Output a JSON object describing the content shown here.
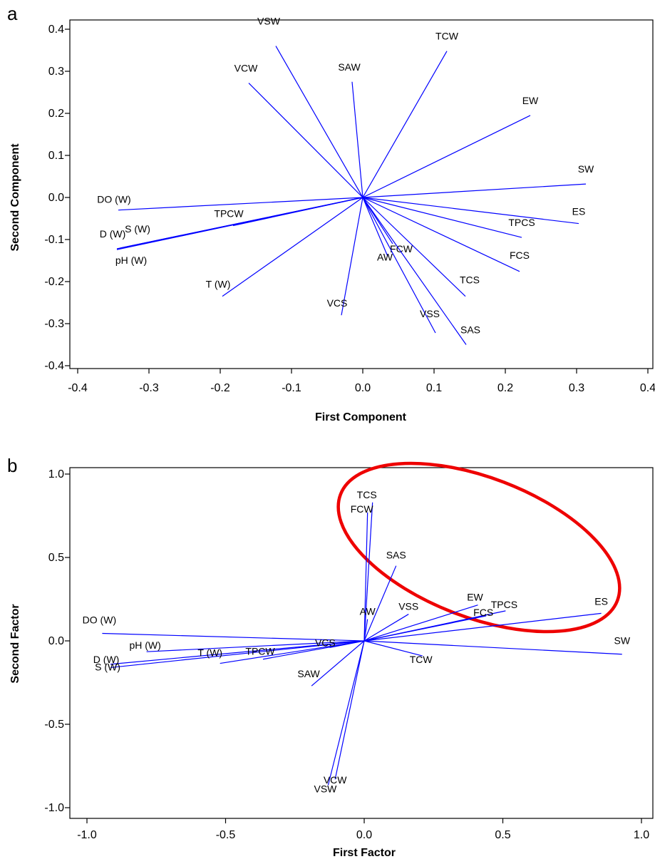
{
  "chart_data": [
    {
      "type": "scatter",
      "panel": "a",
      "xlabel": "First Component",
      "ylabel": "Second Component",
      "xlim": [
        -0.4,
        0.4
      ],
      "ylim": [
        -0.4,
        0.4
      ],
      "xticks": [
        "-0.4",
        "-0.3",
        "-0.2",
        "-0.1",
        "0.0",
        "0.1",
        "0.2",
        "0.3",
        "0.4"
      ],
      "yticks": [
        "-0.4",
        "-0.3",
        "-0.2",
        "-0.1",
        "0.0",
        "0.1",
        "0.2",
        "0.3",
        "0.4"
      ],
      "line_color": "#0000ff",
      "vectors": [
        {
          "name": "VSW",
          "x": -0.122,
          "y": 0.36
        },
        {
          "name": "TCW",
          "x": 0.118,
          "y": 0.348
        },
        {
          "name": "VCW",
          "x": -0.16,
          "y": 0.272
        },
        {
          "name": "SAW",
          "x": -0.015,
          "y": 0.275
        },
        {
          "name": "EW",
          "x": 0.235,
          "y": 0.195
        },
        {
          "name": "SW",
          "x": 0.313,
          "y": 0.032
        },
        {
          "name": "DO (W)",
          "x": -0.343,
          "y": -0.03
        },
        {
          "name": "ES",
          "x": 0.303,
          "y": -0.062
        },
        {
          "name": "TPCW",
          "x": -0.182,
          "y": -0.067
        },
        {
          "name": "S (W)",
          "x": -0.34,
          "y": -0.12
        },
        {
          "name": "D (W)",
          "x": -0.345,
          "y": -0.122
        },
        {
          "name": "pH (W)",
          "x": -0.345,
          "y": -0.124
        },
        {
          "name": "TPCS",
          "x": 0.223,
          "y": -0.095
        },
        {
          "name": "FCW",
          "x": 0.042,
          "y": -0.11
        },
        {
          "name": "AW",
          "x": 0.035,
          "y": -0.14
        },
        {
          "name": "FCS",
          "x": 0.22,
          "y": -0.176
        },
        {
          "name": "T (W)",
          "x": -0.197,
          "y": -0.235
        },
        {
          "name": "TCS",
          "x": 0.144,
          "y": -0.235
        },
        {
          "name": "VCS",
          "x": -0.03,
          "y": -0.28
        },
        {
          "name": "VSS",
          "x": 0.102,
          "y": -0.322
        },
        {
          "name": "SAS",
          "x": 0.145,
          "y": -0.35
        }
      ]
    },
    {
      "type": "scatter",
      "panel": "b",
      "xlabel": "First Factor",
      "ylabel": "Second Factor",
      "xlim": [
        -1.0,
        1.0
      ],
      "ylim": [
        -1.0,
        1.0
      ],
      "xticks": [
        "-1.0",
        "-0.5",
        "0.0",
        "0.5",
        "1.0"
      ],
      "yticks": [
        "-1.0",
        "-0.5",
        "0.0",
        "0.5",
        "1.0"
      ],
      "line_color": "#0000ff",
      "highlight_color": "#ee0000",
      "vectors": [
        {
          "name": "TCS",
          "x": 0.03,
          "y": 0.83
        },
        {
          "name": "FCW",
          "x": 0.012,
          "y": 0.77
        },
        {
          "name": "SAS",
          "x": 0.115,
          "y": 0.45
        },
        {
          "name": "AW",
          "x": 0.012,
          "y": 0.13
        },
        {
          "name": "VSS",
          "x": 0.16,
          "y": 0.16
        },
        {
          "name": "EW",
          "x": 0.41,
          "y": 0.215
        },
        {
          "name": "TPCS",
          "x": 0.51,
          "y": 0.18
        },
        {
          "name": "FCS",
          "x": 0.44,
          "y": 0.15
        },
        {
          "name": "ES",
          "x": 0.855,
          "y": 0.165
        },
        {
          "name": "SW",
          "x": 0.93,
          "y": -0.08
        },
        {
          "name": "TCW",
          "x": 0.21,
          "y": -0.09
        },
        {
          "name": "DO (W)",
          "x": -0.945,
          "y": 0.045
        },
        {
          "name": "pH (W)",
          "x": -0.785,
          "y": -0.065
        },
        {
          "name": "D (W)",
          "x": -0.915,
          "y": -0.14
        },
        {
          "name": "S (W)",
          "x": -0.915,
          "y": -0.16
        },
        {
          "name": "T (W)",
          "x": -0.52,
          "y": -0.135
        },
        {
          "name": "TPCW",
          "x": -0.365,
          "y": -0.11
        },
        {
          "name": "VCS",
          "x": -0.125,
          "y": -0.04
        },
        {
          "name": "SAW",
          "x": -0.19,
          "y": -0.27
        },
        {
          "name": "VCW",
          "x": -0.105,
          "y": -0.83
        },
        {
          "name": "VSW",
          "x": -0.13,
          "y": -0.865
        }
      ]
    }
  ]
}
